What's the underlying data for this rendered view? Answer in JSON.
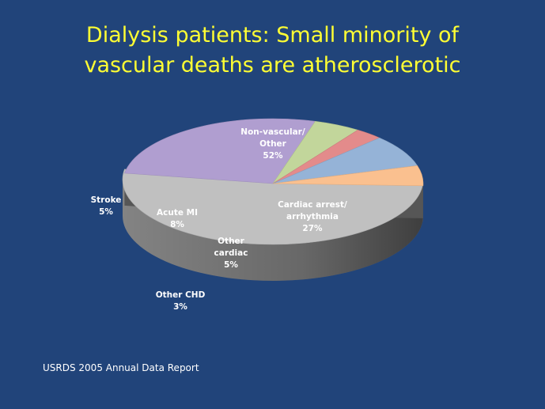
{
  "slide": {
    "title_line1": "Dialysis patients: Small minority of",
    "title_line2": "vascular deaths are atherosclerotic",
    "source": "USRDS 2005 Annual Data Report"
  },
  "chart_data": {
    "type": "pie",
    "style": "3d-exploded",
    "title": "",
    "slices": [
      {
        "key": "nonvascular",
        "label_lines": [
          "Non-vascular/",
          "Other"
        ],
        "pct_label": "52%",
        "value": 52,
        "color": "#c0c0c0",
        "label_placement": "inside"
      },
      {
        "key": "cardiac_arrest",
        "label_lines": [
          "Cardiac arrest/",
          "arrhythmia"
        ],
        "pct_label": "27%",
        "value": 27,
        "color": "#b09ed0",
        "label_placement": "inside"
      },
      {
        "key": "other_cardiac",
        "label_lines": [
          "Other",
          "cardiac"
        ],
        "pct_label": "5%",
        "value": 5,
        "color": "#c2d69b",
        "label_placement": "inside"
      },
      {
        "key": "other_chd",
        "label_lines": [
          "Other CHD"
        ],
        "pct_label": "3%",
        "value": 3,
        "color": "#e38b8b",
        "label_placement": "outside"
      },
      {
        "key": "acute_mi",
        "label_lines": [
          "Acute MI"
        ],
        "pct_label": "8%",
        "value": 8,
        "color": "#95b3d7",
        "label_placement": "inside"
      },
      {
        "key": "stroke",
        "label_lines": [
          "Stroke"
        ],
        "pct_label": "5%",
        "value": 5,
        "color": "#fac08f",
        "label_placement": "outside"
      }
    ]
  }
}
